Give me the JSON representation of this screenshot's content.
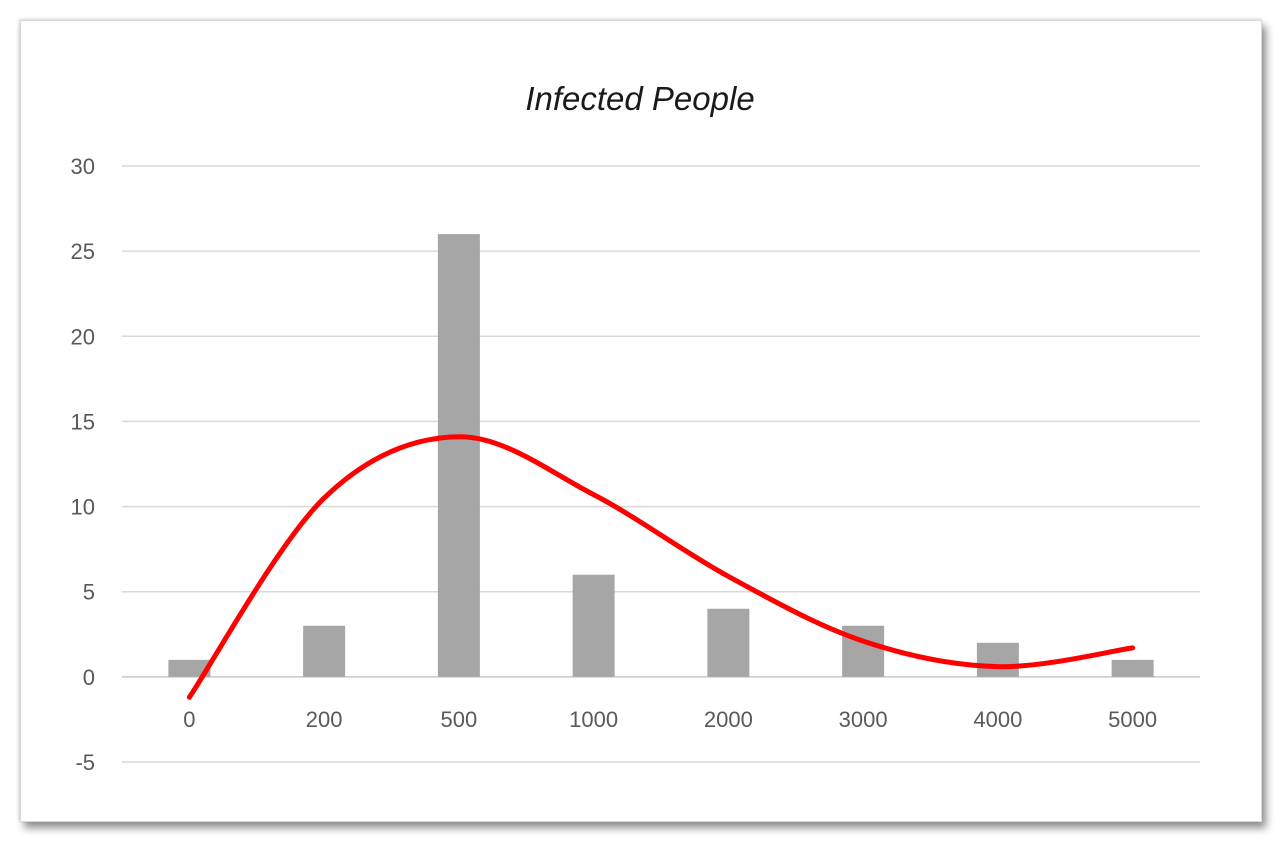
{
  "chart_data": {
    "type": "bar",
    "title": "Infected People",
    "xlabel": "",
    "ylabel": "",
    "categories": [
      "0",
      "200",
      "500",
      "1000",
      "2000",
      "3000",
      "4000",
      "5000"
    ],
    "series": [
      {
        "values": [
          1,
          3,
          26,
          6,
          4,
          3,
          2,
          1
        ],
        "color": "#a6a6a6"
      }
    ],
    "trendline": {
      "type": "polynomial",
      "color": "#ff0000",
      "values": [
        -1.2,
        10.5,
        14.1,
        10.7,
        5.9,
        2.1,
        0.6,
        1.7
      ]
    },
    "ylim": [
      -5,
      30
    ],
    "yticks": [
      30,
      25,
      20,
      15,
      10,
      5,
      0,
      -5
    ],
    "grid": true,
    "legend": "none"
  }
}
